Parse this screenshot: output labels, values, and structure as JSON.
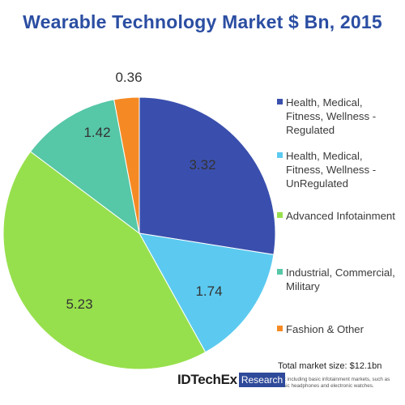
{
  "chart_data": {
    "type": "pie",
    "title": "Wearable Technology Market $ Bn, 2015",
    "categories": [
      "Health, Medical, Fitness, Wellness - Regulated",
      "Health, Medical, Fitness, Wellness - UnRegulated",
      "Advanced Infotainment",
      "Industrial, Commercial, Military",
      "Fashion & Other"
    ],
    "values": [
      3.32,
      1.74,
      5.23,
      1.42,
      0.36
    ],
    "data_labels": [
      "3.32",
      "1.74",
      "5.23",
      "1.42",
      "0.36"
    ],
    "colors": [
      "#3a4fad",
      "#5ccaf0",
      "#97e04d",
      "#56c7a7",
      "#f58a24"
    ],
    "legend_lines": [
      [
        "Health, Medical,",
        "Fitness, Wellness -",
        "Regulated"
      ],
      [
        "Health, Medical,",
        "Fitness, Wellness -",
        "UnRegulated"
      ],
      [
        "Advanced Infotainment"
      ],
      [
        "Industrial, Commercial,",
        "Military"
      ],
      [
        "Fashion & Other"
      ]
    ],
    "legend_position": "right"
  },
  "total_note": "Total market size: $12.1bn",
  "footnote": "Not including basic infotainment markets, such as basic headphones and electronic watches.",
  "logo": {
    "name": "IDTechEx",
    "badge": "Research"
  }
}
